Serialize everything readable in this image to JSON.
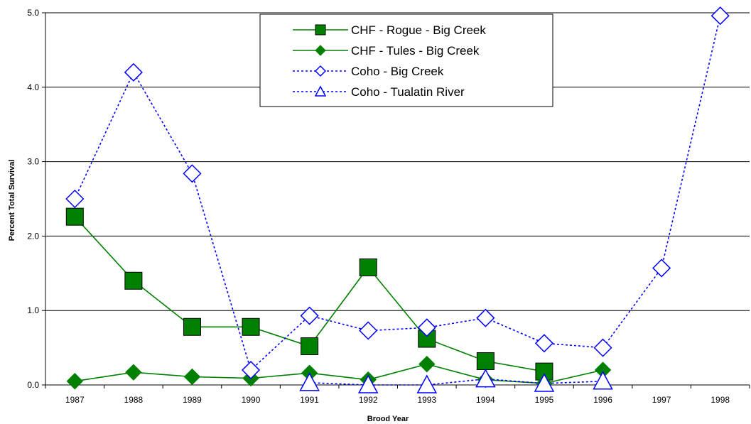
{
  "chart_data": {
    "type": "line",
    "title": "",
    "xlabel": "Brood Year",
    "ylabel": "Percent Total Survival",
    "categories": [
      "1987",
      "1988",
      "1989",
      "1990",
      "1991",
      "1992",
      "1993",
      "1994",
      "1995",
      "1996",
      "1997",
      "1998"
    ],
    "ylim": [
      0,
      5
    ],
    "yticks": [
      "0.0",
      "1.0",
      "2.0",
      "3.0",
      "4.0",
      "5.0"
    ],
    "grid": "horizontal",
    "legend_position": "top-center",
    "series": [
      {
        "name": "CHF -  Rogue -  Big Creek",
        "color": "#008000",
        "line": "solid",
        "marker": "square",
        "values": [
          2.26,
          1.4,
          0.78,
          0.78,
          0.52,
          1.58,
          0.62,
          0.32,
          0.18,
          null,
          null,
          null
        ]
      },
      {
        "name": "CHF -  Tules -  Big Creek",
        "color": "#008000",
        "line": "solid",
        "marker": "diamond",
        "values": [
          0.05,
          0.17,
          0.11,
          0.09,
          0.16,
          0.07,
          0.28,
          0.07,
          0.02,
          0.2,
          null,
          null
        ]
      },
      {
        "name": "Coho -  Big Creek",
        "color": "#0000ff",
        "line": "dotted",
        "marker": "open-diamond",
        "values": [
          2.5,
          4.2,
          2.84,
          0.2,
          0.93,
          0.73,
          0.77,
          0.9,
          0.56,
          0.5,
          1.57,
          4.96
        ]
      },
      {
        "name": "Coho -  Tualatin River",
        "color": "#0000ff",
        "line": "dotted",
        "marker": "open-triangle",
        "values": [
          null,
          null,
          null,
          null,
          0.03,
          0.0,
          0.0,
          0.08,
          0.02,
          0.05,
          null,
          null
        ]
      }
    ]
  }
}
